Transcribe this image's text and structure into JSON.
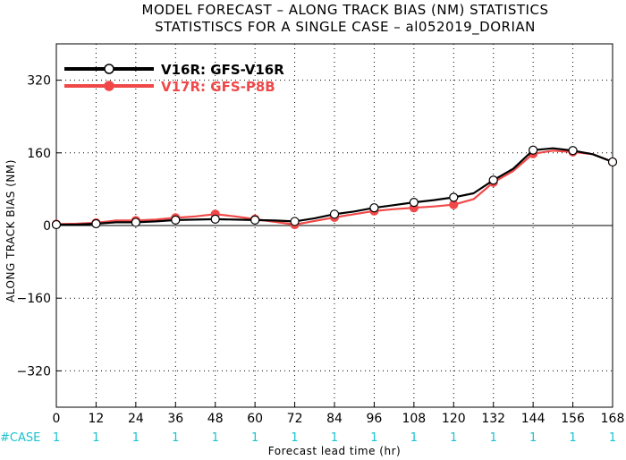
{
  "chart_data": {
    "type": "line",
    "title": "MODEL FORECAST – ALONG TRACK BIAS (NM) STATISTICS",
    "subtitle": "STATISTISCS FOR A SINGLE CASE – al052019_DORIAN",
    "xlabel": "Forecast lead time (hr)",
    "ylabel": "ALONG TRACK BIAS (NM)",
    "xlim": [
      0,
      168
    ],
    "ylim": [
      -400,
      400
    ],
    "xticks": [
      0,
      12,
      24,
      36,
      48,
      60,
      72,
      84,
      96,
      108,
      120,
      132,
      144,
      156,
      168
    ],
    "yticks": [
      320,
      160,
      0,
      -160,
      -320
    ],
    "zero_line": true,
    "legend_position": "top-left",
    "series": [
      {
        "name": "V16R: GFS-V16R",
        "color": "#000000",
        "marker": "open-circle",
        "x": [
          0,
          6,
          12,
          18,
          24,
          30,
          36,
          42,
          48,
          54,
          60,
          66,
          72,
          78,
          84,
          90,
          96,
          102,
          108,
          114,
          120,
          126,
          132,
          138,
          144,
          150,
          156,
          162,
          168
        ],
        "y": [
          2,
          2,
          4,
          7,
          7,
          9,
          12,
          13,
          14,
          13,
          12,
          11,
          9,
          16,
          25,
          31,
          39,
          45,
          51,
          56,
          62,
          71,
          100,
          125,
          166,
          170,
          165,
          157,
          140
        ],
        "marker_x": [
          0,
          12,
          24,
          36,
          48,
          60,
          72,
          84,
          96,
          108,
          120,
          132,
          144,
          156,
          168
        ]
      },
      {
        "name": "V17R: GFS-P8B",
        "color": "#f04848",
        "marker": "filled-circle",
        "x": [
          0,
          6,
          12,
          18,
          24,
          30,
          36,
          42,
          48,
          54,
          60,
          66,
          72,
          78,
          84,
          90,
          96,
          102,
          108,
          114,
          120,
          126,
          132,
          138,
          144,
          150,
          156,
          162,
          168
        ],
        "y": [
          3,
          4,
          6,
          11,
          11,
          13,
          17,
          20,
          25,
          20,
          14,
          8,
          2,
          10,
          18,
          25,
          32,
          36,
          39,
          42,
          46,
          58,
          95,
          120,
          158,
          165,
          162,
          157,
          140
        ],
        "marker_x": [
          0,
          12,
          24,
          36,
          48,
          60,
          72,
          84,
          96,
          108,
          120,
          132,
          144,
          156,
          168
        ]
      }
    ],
    "case_counts": {
      "label": "#CASE",
      "color": "#19c3cf",
      "values": [
        1,
        1,
        1,
        1,
        1,
        1,
        1,
        1,
        1,
        1,
        1,
        1,
        1,
        1,
        1
      ]
    }
  }
}
